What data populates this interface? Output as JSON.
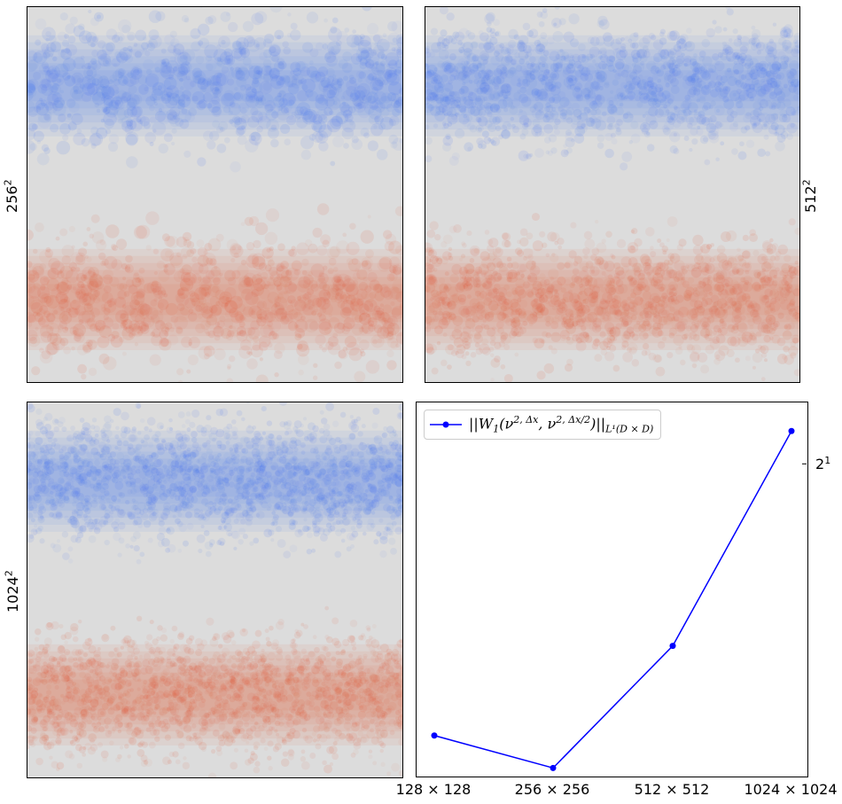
{
  "panels": [
    {
      "label_base": "256",
      "label_exp": "2"
    },
    {
      "label_base": "512",
      "label_exp": "2"
    },
    {
      "label_base": "1024",
      "label_exp": "2"
    }
  ],
  "colors": {
    "background": "#dcdcdc",
    "blue": "#3b6cf5",
    "red": "#e3522f",
    "line": "#0000ff"
  },
  "chart_data": {
    "type": "line",
    "x": [
      "128 × 128",
      "256 × 256",
      "512 × 512",
      "1024 × 1024"
    ],
    "series": [
      {
        "name": "||W₁(ν²,Δx, ν²,Δx/2)||L¹(D×D)",
        "values": [
          0.98,
          0.9,
          1.24,
          2.18
        ],
        "color": "#0000ff",
        "marker": "circle"
      }
    ],
    "yscale": "log2",
    "ylim": [
      0.88,
      2.35
    ],
    "yticks": [
      {
        "value": 2,
        "base": "2",
        "exp": "1"
      }
    ],
    "ytick_side": "right",
    "legend_position": "upper-left",
    "legend": {
      "text_main": "||W",
      "text_sub1": "1",
      "text_mid": "(ν",
      "text_sup1": "2, Δx",
      "text_mid2": ", ν",
      "text_sup2": "2, Δx/2",
      "text_end": ")||",
      "text_sub2": "L¹(D × D)"
    }
  }
}
